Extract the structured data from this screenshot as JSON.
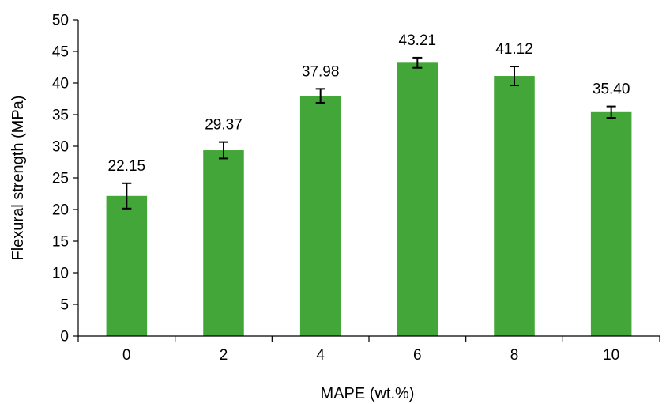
{
  "chart_data": {
    "type": "bar",
    "xlabel": "MAPE (wt.%)",
    "ylabel": "Flexural strength (MPa)",
    "categories": [
      "0",
      "2",
      "4",
      "6",
      "8",
      "10"
    ],
    "values": [
      22.15,
      29.37,
      37.98,
      43.21,
      41.12,
      35.4
    ],
    "data_labels": [
      "22.15",
      "29.37",
      "37.98",
      "43.21",
      "41.12",
      "35.40"
    ],
    "error_bars": [
      2.0,
      1.3,
      1.1,
      0.8,
      1.5,
      0.9
    ],
    "ylim": [
      0,
      50
    ],
    "yticks": [
      0,
      5,
      10,
      15,
      20,
      25,
      30,
      35,
      40,
      45,
      50
    ],
    "ytick_labels": [
      "0",
      "5",
      "10",
      "15",
      "20",
      "25",
      "30",
      "35",
      "40",
      "45",
      "50"
    ],
    "grid": false,
    "legend": "none",
    "colors": {
      "bar": "#42a638",
      "error_bar": "#000000",
      "axis": "#000000"
    }
  }
}
